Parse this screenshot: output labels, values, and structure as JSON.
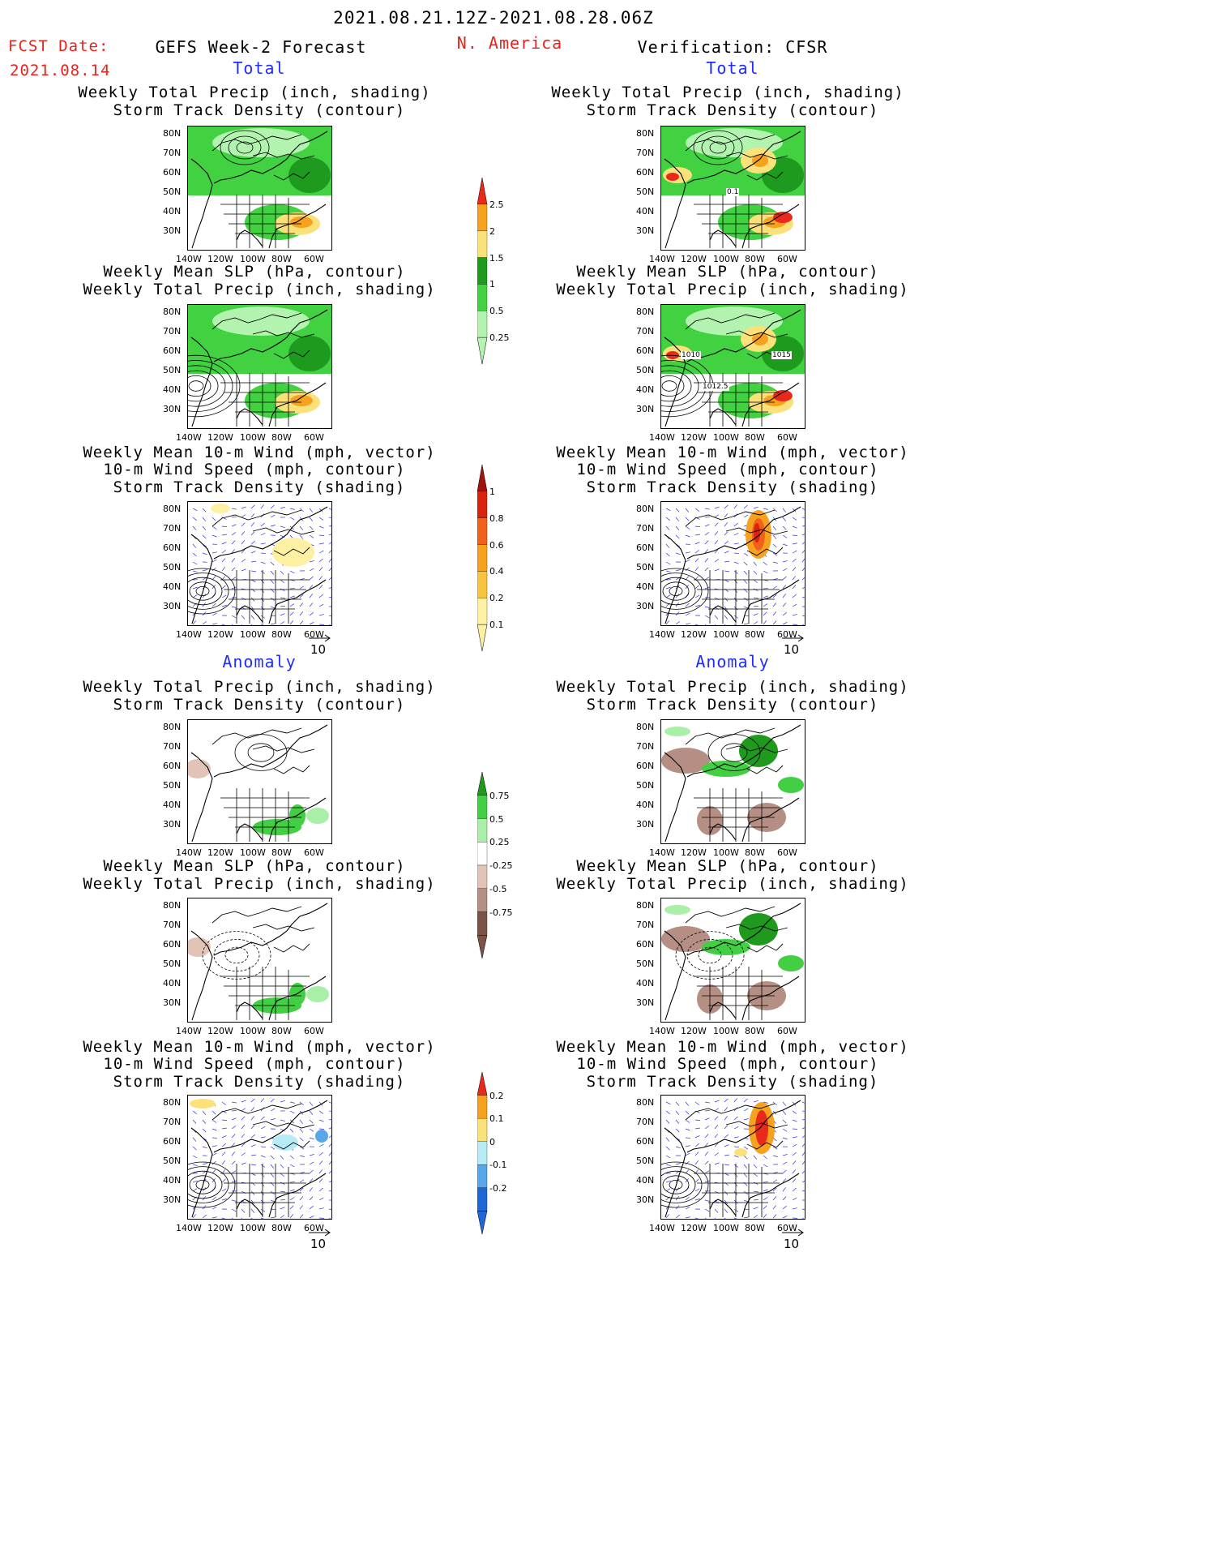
{
  "header": {
    "period": "2021.08.21.12Z-2021.08.28.06Z",
    "fcst_label": "FCST Date:",
    "fcst_date": "2021.08.14",
    "forecast_label": "GEFS Week-2 Forecast",
    "region": "N. America",
    "verification_label": "Verification: CFSR",
    "total_label": "Total",
    "anomaly_label": "Anomaly"
  },
  "titles": {
    "precip_track": [
      "Weekly Total Precip (inch, shading)",
      "Storm Track Density (contour)"
    ],
    "slp_precip": [
      "Weekly Mean SLP (hPa, contour)",
      "Weekly Total Precip (inch, shading)"
    ],
    "wind": [
      "Weekly Mean 10-m Wind (mph, vector)",
      "10-m Wind Speed (mph, contour)",
      "Storm Track Density (shading)"
    ]
  },
  "axes": {
    "lat_ticks": [
      "80N",
      "70N",
      "60N",
      "50N",
      "40N",
      "30N"
    ],
    "lon_ticks": [
      "140W",
      "120W",
      "100W",
      "80W",
      "60W"
    ]
  },
  "vector_ref": "10",
  "colorbars": {
    "total_precip": {
      "labels": [
        "2.5",
        "2",
        "1.5",
        "1",
        "0.5",
        "0.25"
      ],
      "colors": [
        "#e8291c",
        "#f6a21e",
        "#fbe17a",
        "#1e9b1e",
        "#41d141",
        "#b3f3b0"
      ]
    },
    "track_density": {
      "labels": [
        "1",
        "0.8",
        "0.6",
        "0.4",
        "0.2",
        "0.1"
      ],
      "colors": [
        "#a0140f",
        "#d9230f",
        "#f2611a",
        "#f6a21e",
        "#f8c33f",
        "#fdf0a2"
      ]
    },
    "precip_anom": {
      "labels": [
        "0.75",
        "0.5",
        "0.25",
        "-0.25",
        "-0.5",
        "-0.75"
      ],
      "colors": [
        "#1f9a1f",
        "#43cf43",
        "#a9efa7",
        "#ffffff",
        "#e2c3b8",
        "#b68f84",
        "#7b5447"
      ]
    },
    "track_anom": {
      "labels": [
        "0.2",
        "0.1",
        "0",
        "-0.1",
        "-0.2"
      ],
      "colors": [
        "#e8291c",
        "#f6a21e",
        "#fbe17a",
        "#b6ebf6",
        "#57a7ea",
        "#1f67d8"
      ]
    }
  },
  "contour_labels": {
    "verif_total_track": [
      "0.1"
    ],
    "verif_total_slp": [
      "1010",
      "1015",
      "1012.5"
    ]
  }
}
